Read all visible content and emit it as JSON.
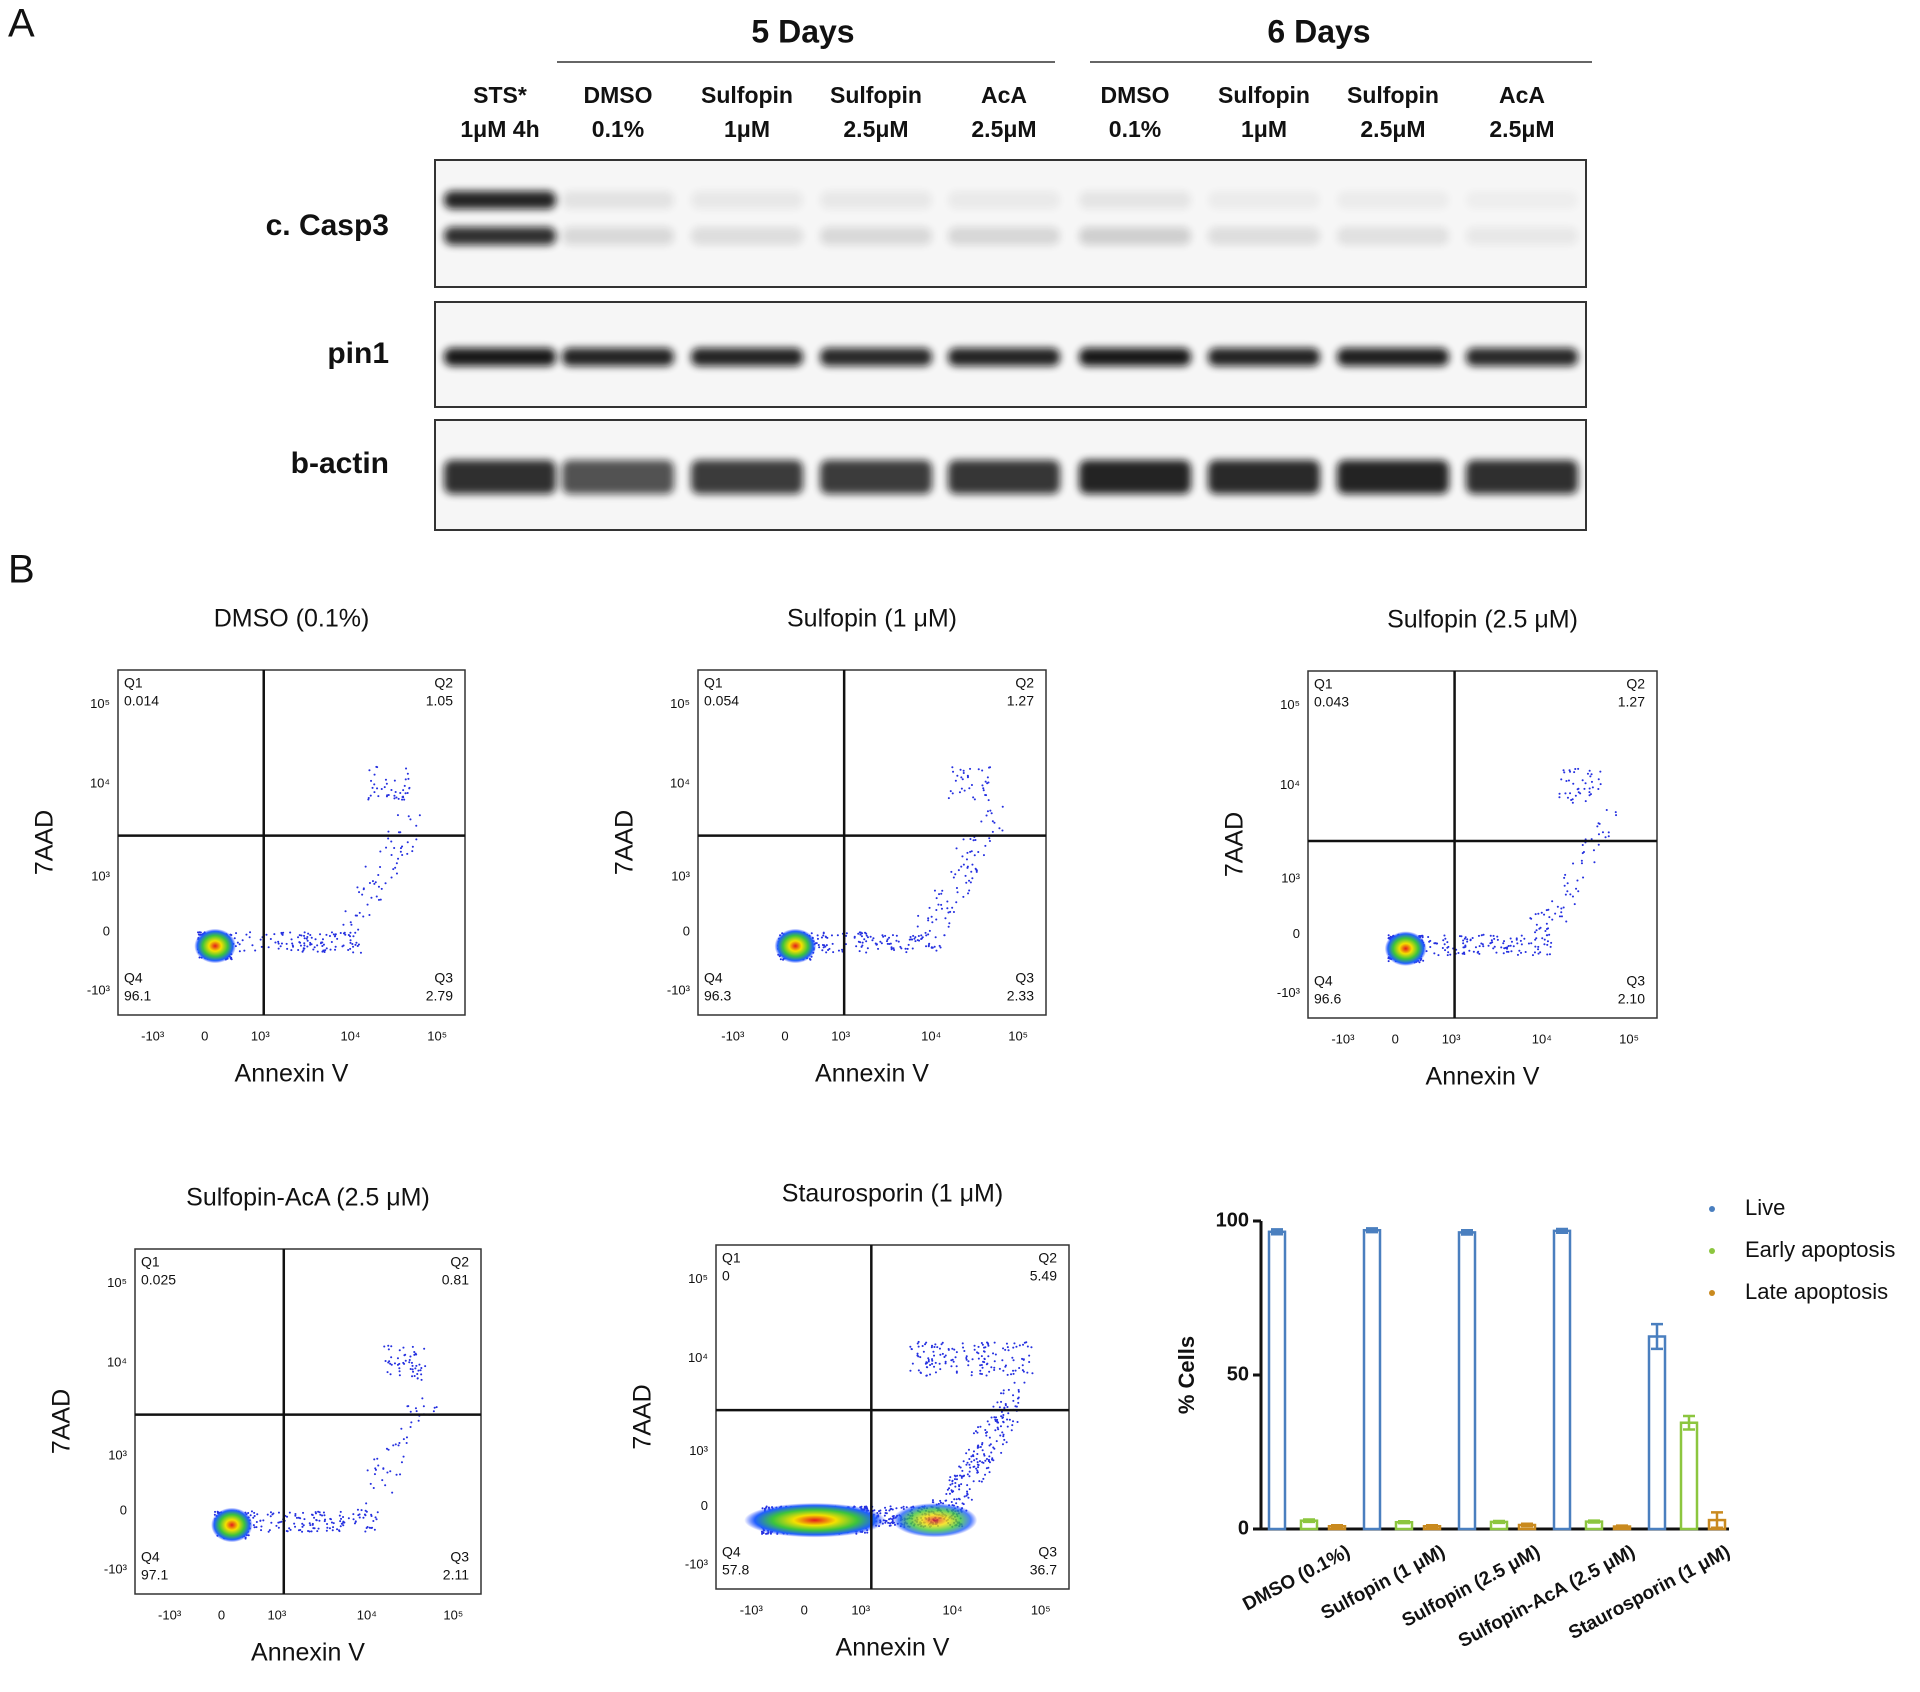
{
  "panel_labels": [
    "A",
    "B"
  ],
  "western_blot": {
    "group_labels": [
      "5 Days",
      "6 Days"
    ],
    "lanes": [
      [
        "STS*",
        "1μM 4h"
      ],
      [
        "DMSO",
        "0.1%"
      ],
      [
        "Sulfopin",
        "1μM"
      ],
      [
        "Sulfopin",
        "2.5μM"
      ],
      [
        "AcA",
        "2.5μM"
      ],
      [
        "DMSO",
        "0.1%"
      ],
      [
        "Sulfopin",
        "1μM"
      ],
      [
        "Sulfopin",
        "2.5μM"
      ],
      [
        "AcA",
        "2.5μM"
      ]
    ],
    "rows": [
      "c. Casp3",
      "pin1",
      "b-actin"
    ]
  },
  "flow_cytometry": {
    "x_label": "Annexin V",
    "y_label": "7AAD",
    "quadrant_names": [
      "Q1",
      "Q2",
      "Q3",
      "Q4"
    ],
    "xticks": [
      "-10³",
      "0",
      "10³",
      "10⁴",
      "10⁵"
    ],
    "yticks": [
      "10⁵",
      "10⁴",
      "10³",
      "0",
      "-10³"
    ],
    "plots": [
      {
        "title": "DMSO (0.1%)",
        "quadrants": [
          "0.014",
          "1.05",
          "2.79",
          "96.1"
        ]
      },
      {
        "title": "Sulfopin (1 μM)",
        "quadrants": [
          "0.054",
          "1.27",
          "2.33",
          "96.3"
        ]
      },
      {
        "title": "Sulfopin (2.5 μM)",
        "quadrants": [
          "0.043",
          "1.27",
          "2.10",
          "96.6"
        ]
      },
      {
        "title": "Sulfopin-AcA (2.5 μM)",
        "quadrants": [
          "0.025",
          "0.81",
          "2.11",
          "97.1"
        ]
      },
      {
        "title": "Staurosporin (1 μM)",
        "quadrants": [
          "0",
          "5.49",
          "36.7",
          "57.8"
        ]
      }
    ]
  },
  "chart_data": {
    "type": "bar",
    "ylabel": "% Cells",
    "categories": [
      "DMSO (0.1%)",
      "Sulfopin (1 μM)",
      "Sulfopin (2.5 μM)",
      "Sulfopin-AcA (2.5 μM)",
      "Staurosporin (1 μM)"
    ],
    "ylim": [
      0,
      100
    ],
    "yticks": [
      0,
      50,
      100
    ],
    "series": [
      {
        "name": "Live",
        "color": "#4a7fbf",
        "values": [
          96.5,
          97,
          96.3,
          96.8,
          62.5
        ],
        "errors": [
          0.8,
          0.6,
          0.7,
          0.6,
          4
        ]
      },
      {
        "name": "Early apoptosis",
        "color": "#8cc63f",
        "values": [
          2.7,
          2.2,
          2.3,
          2.4,
          34.5
        ],
        "errors": [
          0.4,
          0.3,
          0.3,
          0.3,
          2.2
        ]
      },
      {
        "name": "Late apoptosis",
        "color": "#c98a1f",
        "values": [
          0.9,
          0.9,
          1.3,
          0.8,
          2.9
        ],
        "errors": [
          0.3,
          0.3,
          0.4,
          0.3,
          2.5
        ]
      }
    ]
  }
}
